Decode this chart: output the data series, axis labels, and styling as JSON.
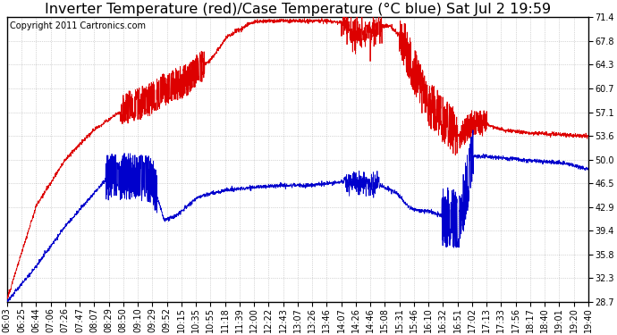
{
  "title": "Inverter Temperature (red)/Case Temperature (°C blue) Sat Jul 2 19:59",
  "copyright": "Copyright 2011 Cartronics.com",
  "ylim": [
    28.7,
    71.4
  ],
  "yticks": [
    28.7,
    32.3,
    35.8,
    39.4,
    42.9,
    46.5,
    50.0,
    53.6,
    57.1,
    60.7,
    64.3,
    67.8,
    71.4
  ],
  "xtick_labels": [
    "06:03",
    "06:25",
    "06:44",
    "07:06",
    "07:26",
    "07:47",
    "08:07",
    "08:29",
    "08:50",
    "09:10",
    "09:29",
    "09:52",
    "10:15",
    "10:35",
    "10:55",
    "11:18",
    "11:39",
    "12:00",
    "12:22",
    "12:43",
    "13:07",
    "13:26",
    "13:46",
    "14:07",
    "14:26",
    "14:46",
    "15:08",
    "15:31",
    "15:46",
    "16:10",
    "16:32",
    "16:51",
    "17:02",
    "17:13",
    "17:33",
    "17:56",
    "18:17",
    "18:40",
    "19:01",
    "19:20",
    "19:40"
  ],
  "background_color": "#ffffff",
  "plot_bg_color": "#ffffff",
  "grid_color": "#aaaaaa",
  "red_color": "#dd0000",
  "blue_color": "#0000cc",
  "title_fontsize": 11.5,
  "tick_fontsize": 7,
  "copyright_fontsize": 7
}
